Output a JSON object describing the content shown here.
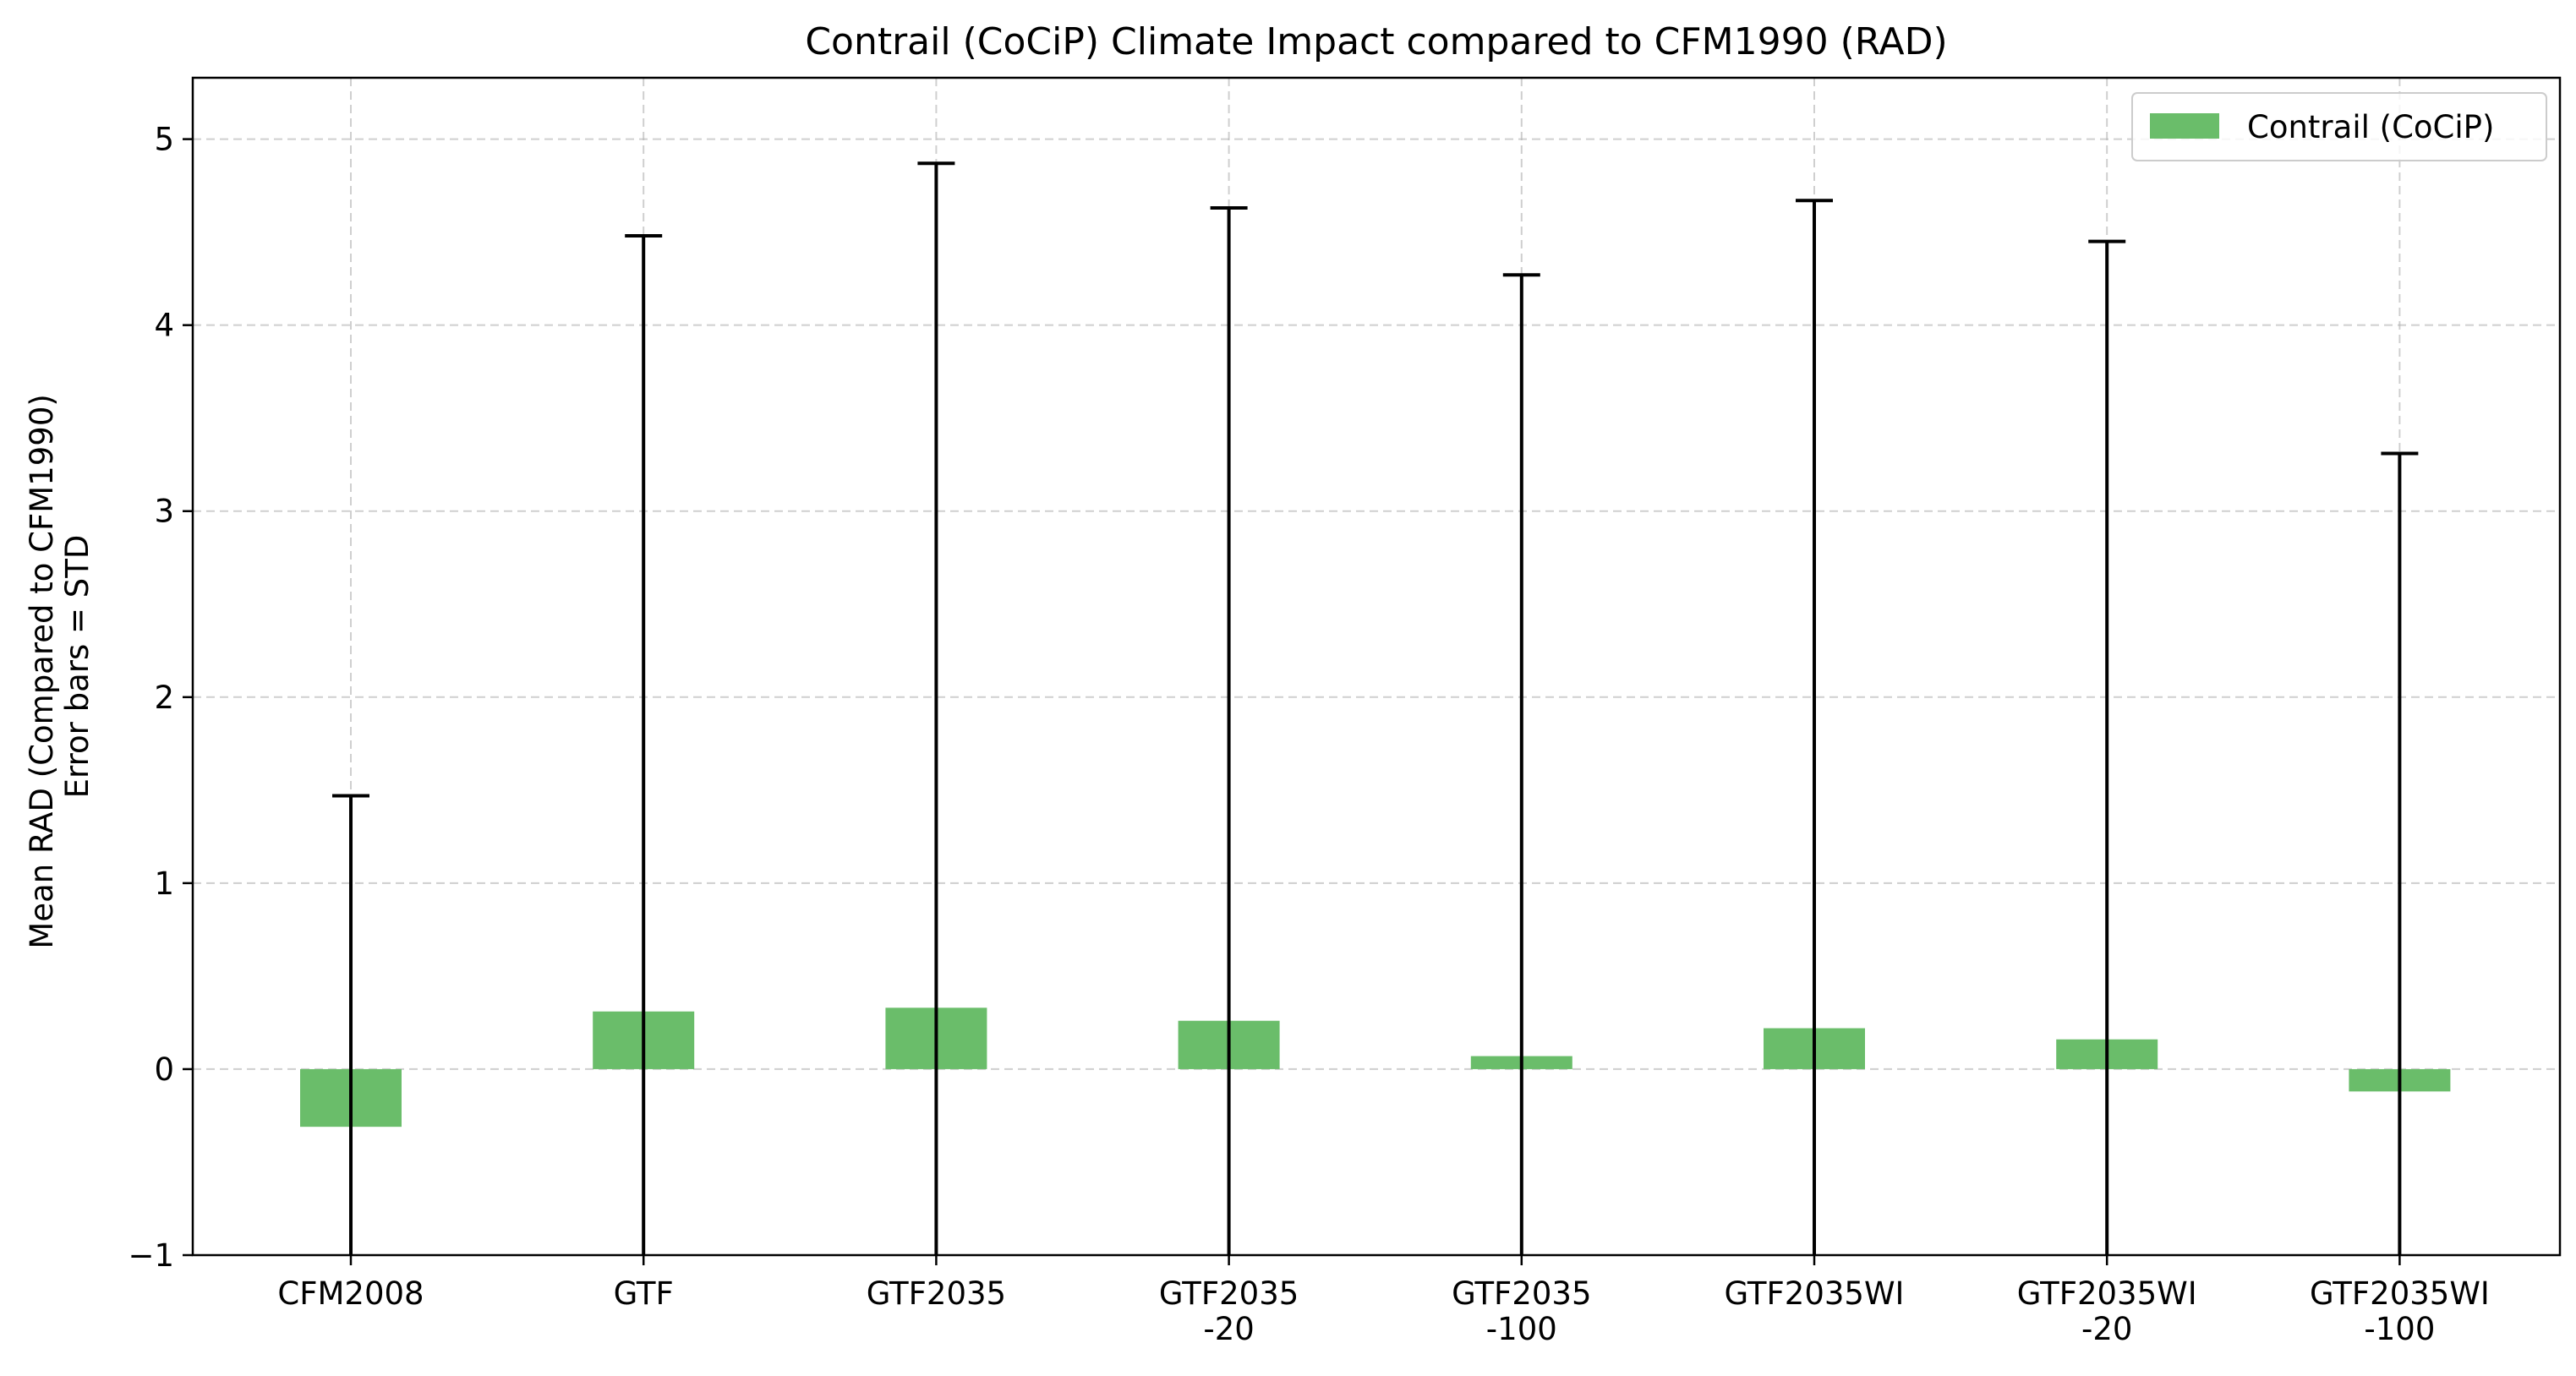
{
  "chart_data": {
    "type": "bar",
    "title": "Contrail (CoCiP) Climate Impact compared to CFM1990 (RAD)",
    "xlabel": "",
    "ylabel_lines": [
      "Mean RAD (Compared to CFM1990)",
      "Error bars = STD"
    ],
    "categories": [
      [
        "CFM2008"
      ],
      [
        "GTF"
      ],
      [
        "GTF2035"
      ],
      [
        "GTF2035",
        "-20"
      ],
      [
        "GTF2035",
        "-100"
      ],
      [
        "GTF2035WI"
      ],
      [
        "GTF2035WI",
        "-20"
      ],
      [
        "GTF2035WI",
        "-100"
      ]
    ],
    "series": [
      {
        "name": "Contrail (CoCiP)",
        "color": "#6abd6a",
        "values": [
          -0.31,
          0.31,
          0.33,
          0.26,
          0.07,
          0.22,
          0.16,
          -0.12
        ],
        "error_upper": [
          1.47,
          4.48,
          4.87,
          4.63,
          4.27,
          4.67,
          4.45,
          3.31
        ]
      }
    ],
    "ylim": [
      -1,
      5.33
    ],
    "yticks": [
      -1,
      0,
      1,
      2,
      3,
      4,
      5
    ],
    "ytick_labels": [
      "−1",
      "0",
      "1",
      "2",
      "3",
      "4",
      "5"
    ],
    "grid": true,
    "legend_position": "top-right"
  }
}
